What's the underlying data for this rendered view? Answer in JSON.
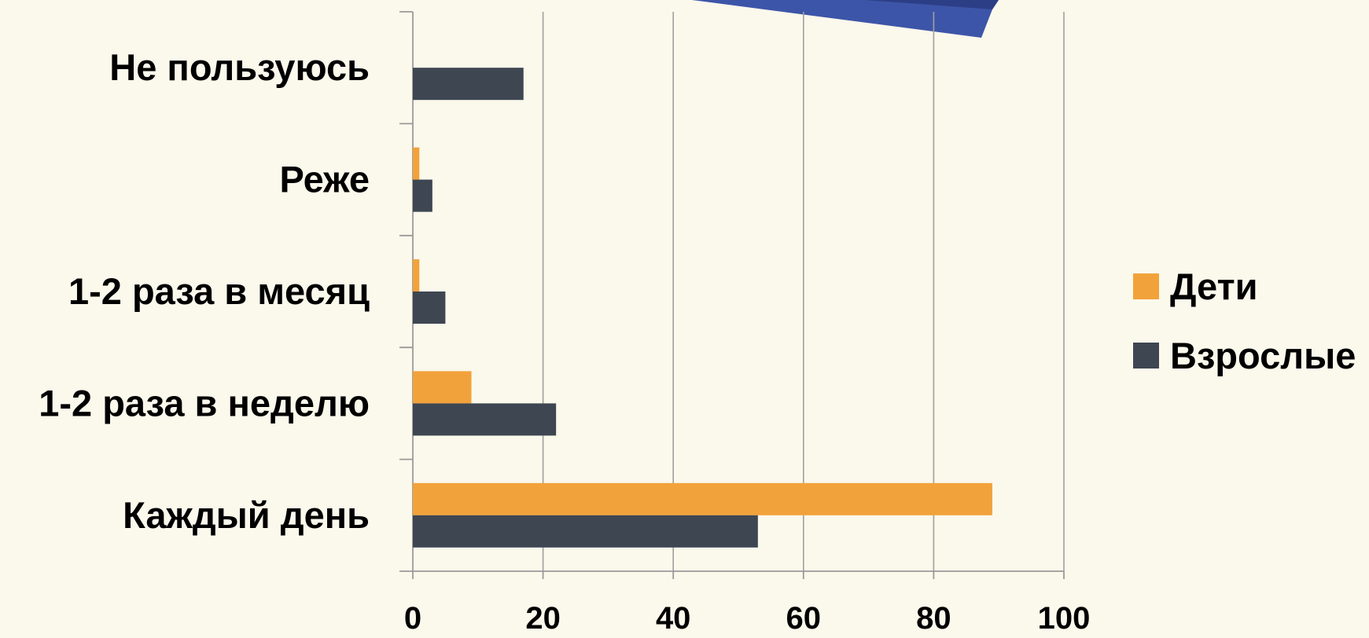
{
  "chart_data": {
    "type": "bar",
    "orientation": "horizontal",
    "categories": [
      "Не пользуюсь",
      "Реже",
      "1-2 раза в месяц",
      "1-2 раза в неделю",
      "Каждый день"
    ],
    "series": [
      {
        "name": "Дети",
        "values": [
          0,
          1,
          1,
          9,
          89
        ],
        "color": "#F2A23A"
      },
      {
        "name": "Взрослые",
        "values": [
          17,
          3,
          5,
          22,
          53
        ],
        "color": "#3E4652"
      }
    ],
    "x_ticks": [
      "0",
      "20",
      "40",
      "60",
      "80",
      "100"
    ],
    "xlim": [
      0,
      100
    ],
    "grid": "vertical",
    "legend_position": "right",
    "title": "",
    "xlabel": "",
    "ylabel": ""
  },
  "colors": {
    "background": "#FBF8EC",
    "gridline": "#A0A0A0",
    "axis": "#9A9A9A",
    "decoration_dark": "#2C3F86",
    "decoration_light": "#3D55A8"
  }
}
